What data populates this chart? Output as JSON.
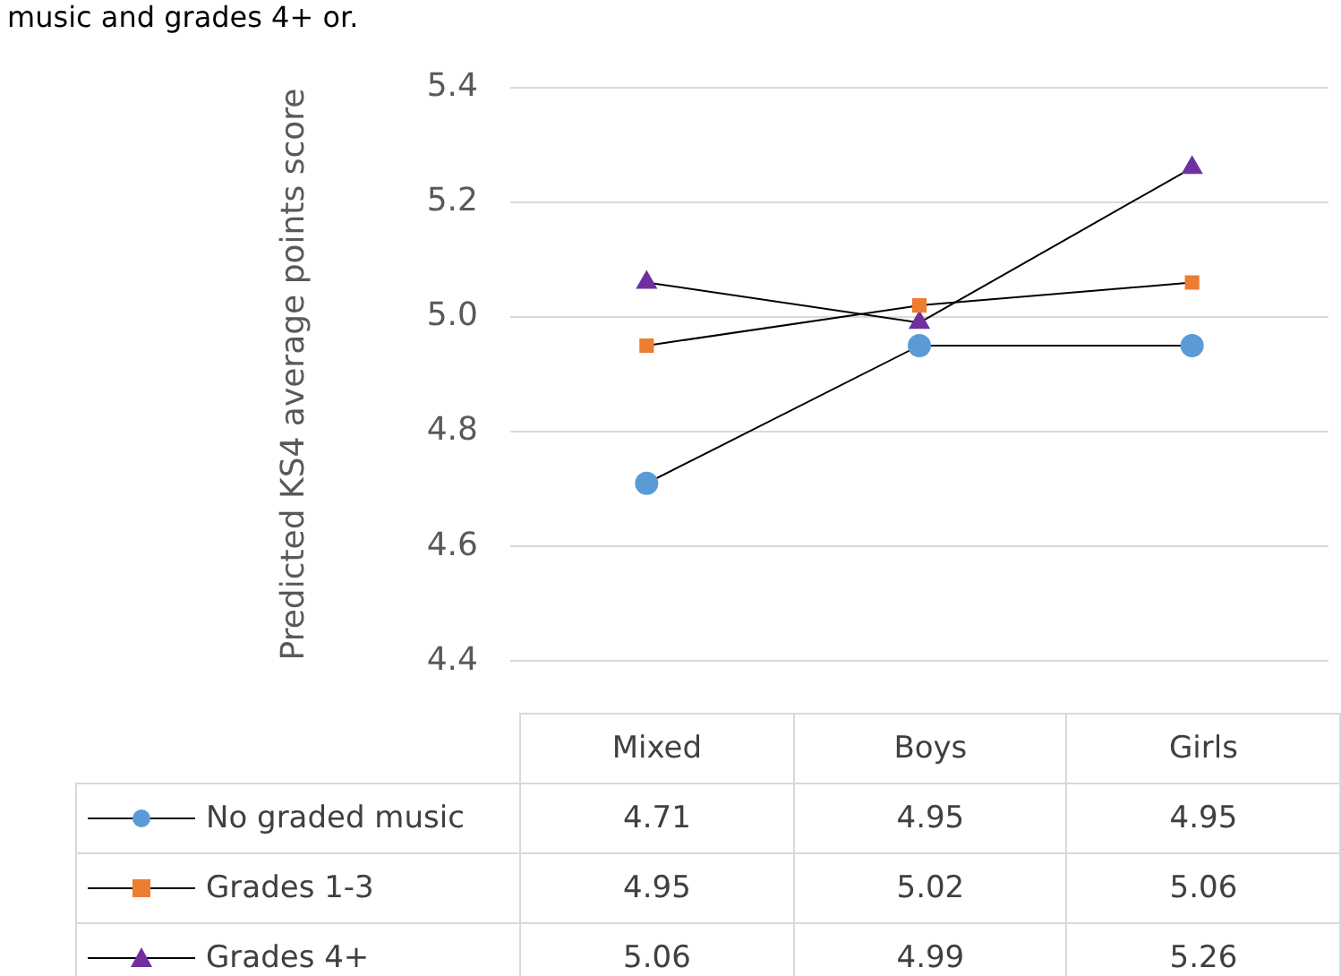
{
  "chart_data": {
    "type": "line",
    "title": "music and grades 4+ or.",
    "ylabel": "Predicted KS4 average points score",
    "categories": [
      "Mixed",
      "Boys",
      "Girls"
    ],
    "series": [
      {
        "name": "No graded music",
        "color": "#5b9bd5",
        "marker": "circle",
        "values": [
          4.71,
          4.95,
          4.95
        ]
      },
      {
        "name": "Grades 1-3",
        "color": "#ed7d31",
        "marker": "square",
        "values": [
          4.95,
          5.02,
          5.06
        ]
      },
      {
        "name": "Grades 4+",
        "color": "#7030a0",
        "marker": "triangle",
        "values": [
          5.06,
          4.99,
          5.26
        ]
      }
    ],
    "ylim": [
      4.4,
      5.4
    ],
    "yticks": [
      4.4,
      4.6,
      4.8,
      {
        "value": 5,
        "label": "5.0"
      },
      5.2,
      5.4
    ],
    "grid": "y",
    "tick_labels": "y",
    "data_labels": true,
    "legend": "bottom"
  }
}
